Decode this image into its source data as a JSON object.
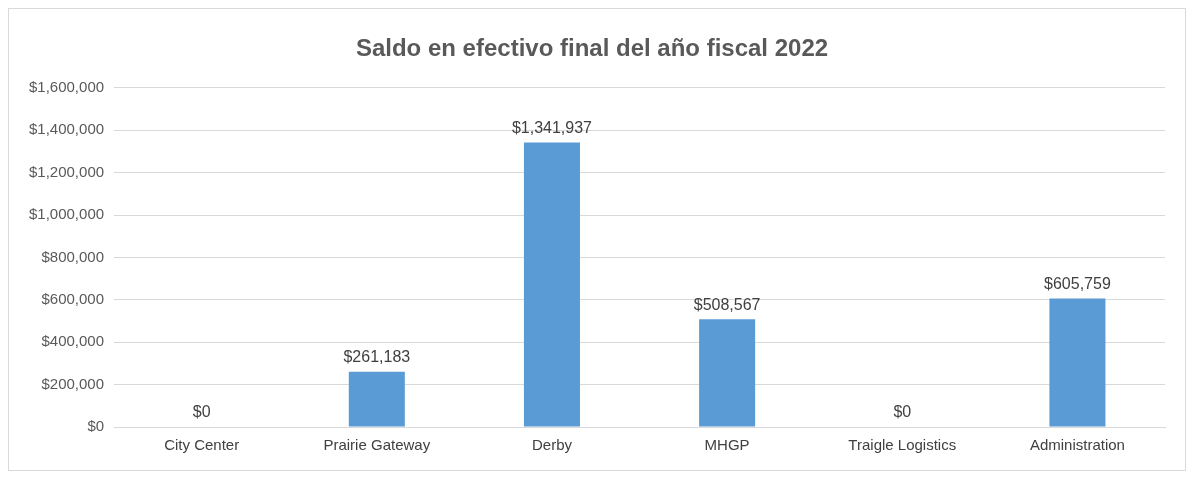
{
  "chart_data": {
    "type": "bar",
    "title": "Saldo en efectivo final del año fiscal 2022",
    "categories": [
      "City Center",
      "Prairie Gateway",
      "Derby",
      "MHGP",
      "Traigle Logistics",
      "Administration"
    ],
    "values": [
      0,
      261183,
      1341937,
      508567,
      0,
      605759
    ],
    "value_labels": [
      "$0",
      "$261,183",
      "$1,341,937",
      "$508,567",
      "$0",
      "$605,759"
    ],
    "color": "#5b9bd5",
    "ylim": [
      0,
      1600000
    ],
    "yticks": [
      {
        "value": 0,
        "label": "$0"
      },
      {
        "value": 200000,
        "label": "$200,000"
      },
      {
        "value": 400000,
        "label": "$400,000"
      },
      {
        "value": 600000,
        "label": "$600,000"
      },
      {
        "value": 800000,
        "label": "$800,000"
      },
      {
        "value": 1000000,
        "label": "$1,000,000"
      },
      {
        "value": 1200000,
        "label": "$1,200,000"
      },
      {
        "value": 1400000,
        "label": "$1,400,000"
      },
      {
        "value": 1600000,
        "label": "$1,600,000"
      }
    ],
    "grid": "y",
    "legend": false
  }
}
